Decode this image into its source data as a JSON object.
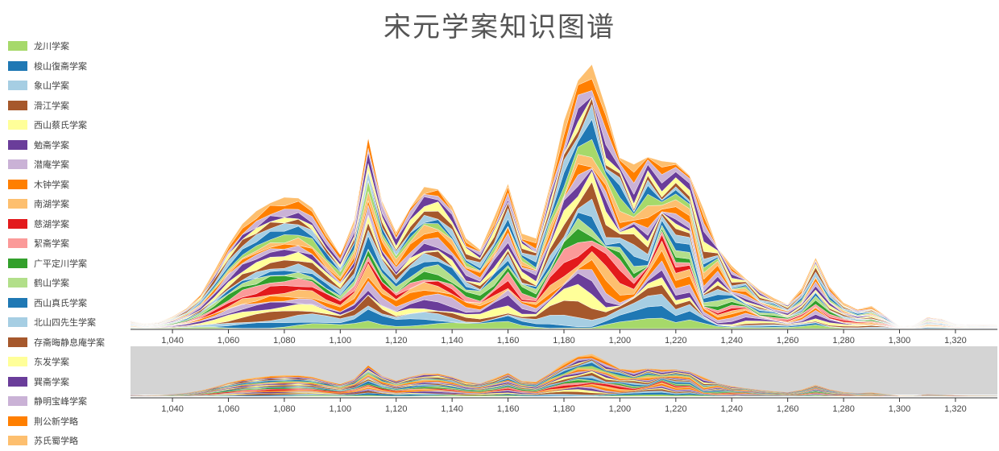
{
  "title": "宋元学案知识图谱",
  "legend": [
    {
      "label": "龙川学案",
      "color": "#a6d96a"
    },
    {
      "label": "梭山復斋学案",
      "color": "#1f78b4"
    },
    {
      "label": "象山学案",
      "color": "#a6cee3"
    },
    {
      "label": "滑江学案",
      "color": "#a6582c"
    },
    {
      "label": "西山蔡氏学案",
      "color": "#ffff99"
    },
    {
      "label": "勉斋学案",
      "color": "#6a3d9a"
    },
    {
      "label": "潜庵学案",
      "color": "#cab2d6"
    },
    {
      "label": "木钟学案",
      "color": "#ff7f00"
    },
    {
      "label": "南湖学案",
      "color": "#fdbf6f"
    },
    {
      "label": "慈湖学案",
      "color": "#e31a1c"
    },
    {
      "label": "絜斋学案",
      "color": "#fb9a99"
    },
    {
      "label": "广平定川学案",
      "color": "#33a02c"
    },
    {
      "label": "鹤山学案",
      "color": "#b2df8a"
    },
    {
      "label": "西山真氏学案",
      "color": "#1f78b4"
    },
    {
      "label": "北山四先生学案",
      "color": "#a6cee3"
    },
    {
      "label": "存斋晦静息庵学案",
      "color": "#a6582c"
    },
    {
      "label": "东发学案",
      "color": "#ffff99"
    },
    {
      "label": "巽斋学案",
      "color": "#6a3d9a"
    },
    {
      "label": "静明宝峰学案",
      "color": "#cab2d6"
    },
    {
      "label": "荆公新学略",
      "color": "#ff7f00"
    },
    {
      "label": "苏氏蜀学略",
      "color": "#fdbf6f"
    }
  ],
  "chart_data": {
    "type": "area",
    "title": "宋元学案知识图谱",
    "xlabel": "",
    "ylabel": "",
    "x_ticks": [
      1040,
      1060,
      1080,
      1100,
      1120,
      1140,
      1160,
      1180,
      1200,
      1220,
      1240,
      1260,
      1280,
      1300,
      1320
    ],
    "xlim": [
      1025,
      1335
    ],
    "stack_total": {
      "x": [
        1025,
        1030,
        1035,
        1040,
        1045,
        1050,
        1055,
        1060,
        1065,
        1070,
        1075,
        1080,
        1085,
        1090,
        1095,
        1100,
        1105,
        1110,
        1115,
        1120,
        1125,
        1130,
        1135,
        1140,
        1145,
        1150,
        1155,
        1160,
        1165,
        1170,
        1175,
        1180,
        1185,
        1190,
        1195,
        1200,
        1205,
        1210,
        1215,
        1220,
        1225,
        1230,
        1235,
        1240,
        1245,
        1250,
        1255,
        1260,
        1265,
        1270,
        1275,
        1280,
        1285,
        1290,
        1295,
        1300,
        1305,
        1310,
        1315,
        1320,
        1325,
        1330,
        1335
      ],
      "y": [
        10,
        6,
        8,
        15,
        25,
        42,
        72,
        104,
        130,
        146,
        156,
        163,
        162,
        150,
        120,
        92,
        135,
        238,
        158,
        120,
        150,
        176,
        173,
        152,
        112,
        98,
        138,
        180,
        118,
        112,
        178,
        258,
        308,
        328,
        274,
        212,
        204,
        213,
        208,
        206,
        190,
        148,
        100,
        78,
        62,
        48,
        38,
        30,
        50,
        88,
        52,
        32,
        24,
        28,
        16,
        3,
        4,
        14,
        12,
        6,
        5,
        5,
        5
      ]
    },
    "series": [
      {
        "name": "龙川学案",
        "values": [
          0,
          0,
          0,
          0,
          1,
          1,
          2,
          3,
          4,
          4,
          4,
          3,
          3,
          2,
          2,
          1,
          2,
          4,
          3,
          2,
          2,
          3,
          3,
          3,
          2,
          2,
          2,
          3,
          2,
          2,
          3,
          4,
          5,
          5,
          4,
          3,
          3,
          3,
          3,
          3,
          3,
          2,
          2,
          1,
          1,
          1,
          1,
          0,
          1,
          1,
          1,
          1,
          0,
          0,
          0,
          0,
          0,
          0,
          0,
          0,
          0,
          0,
          0
        ]
      }
    ]
  }
}
